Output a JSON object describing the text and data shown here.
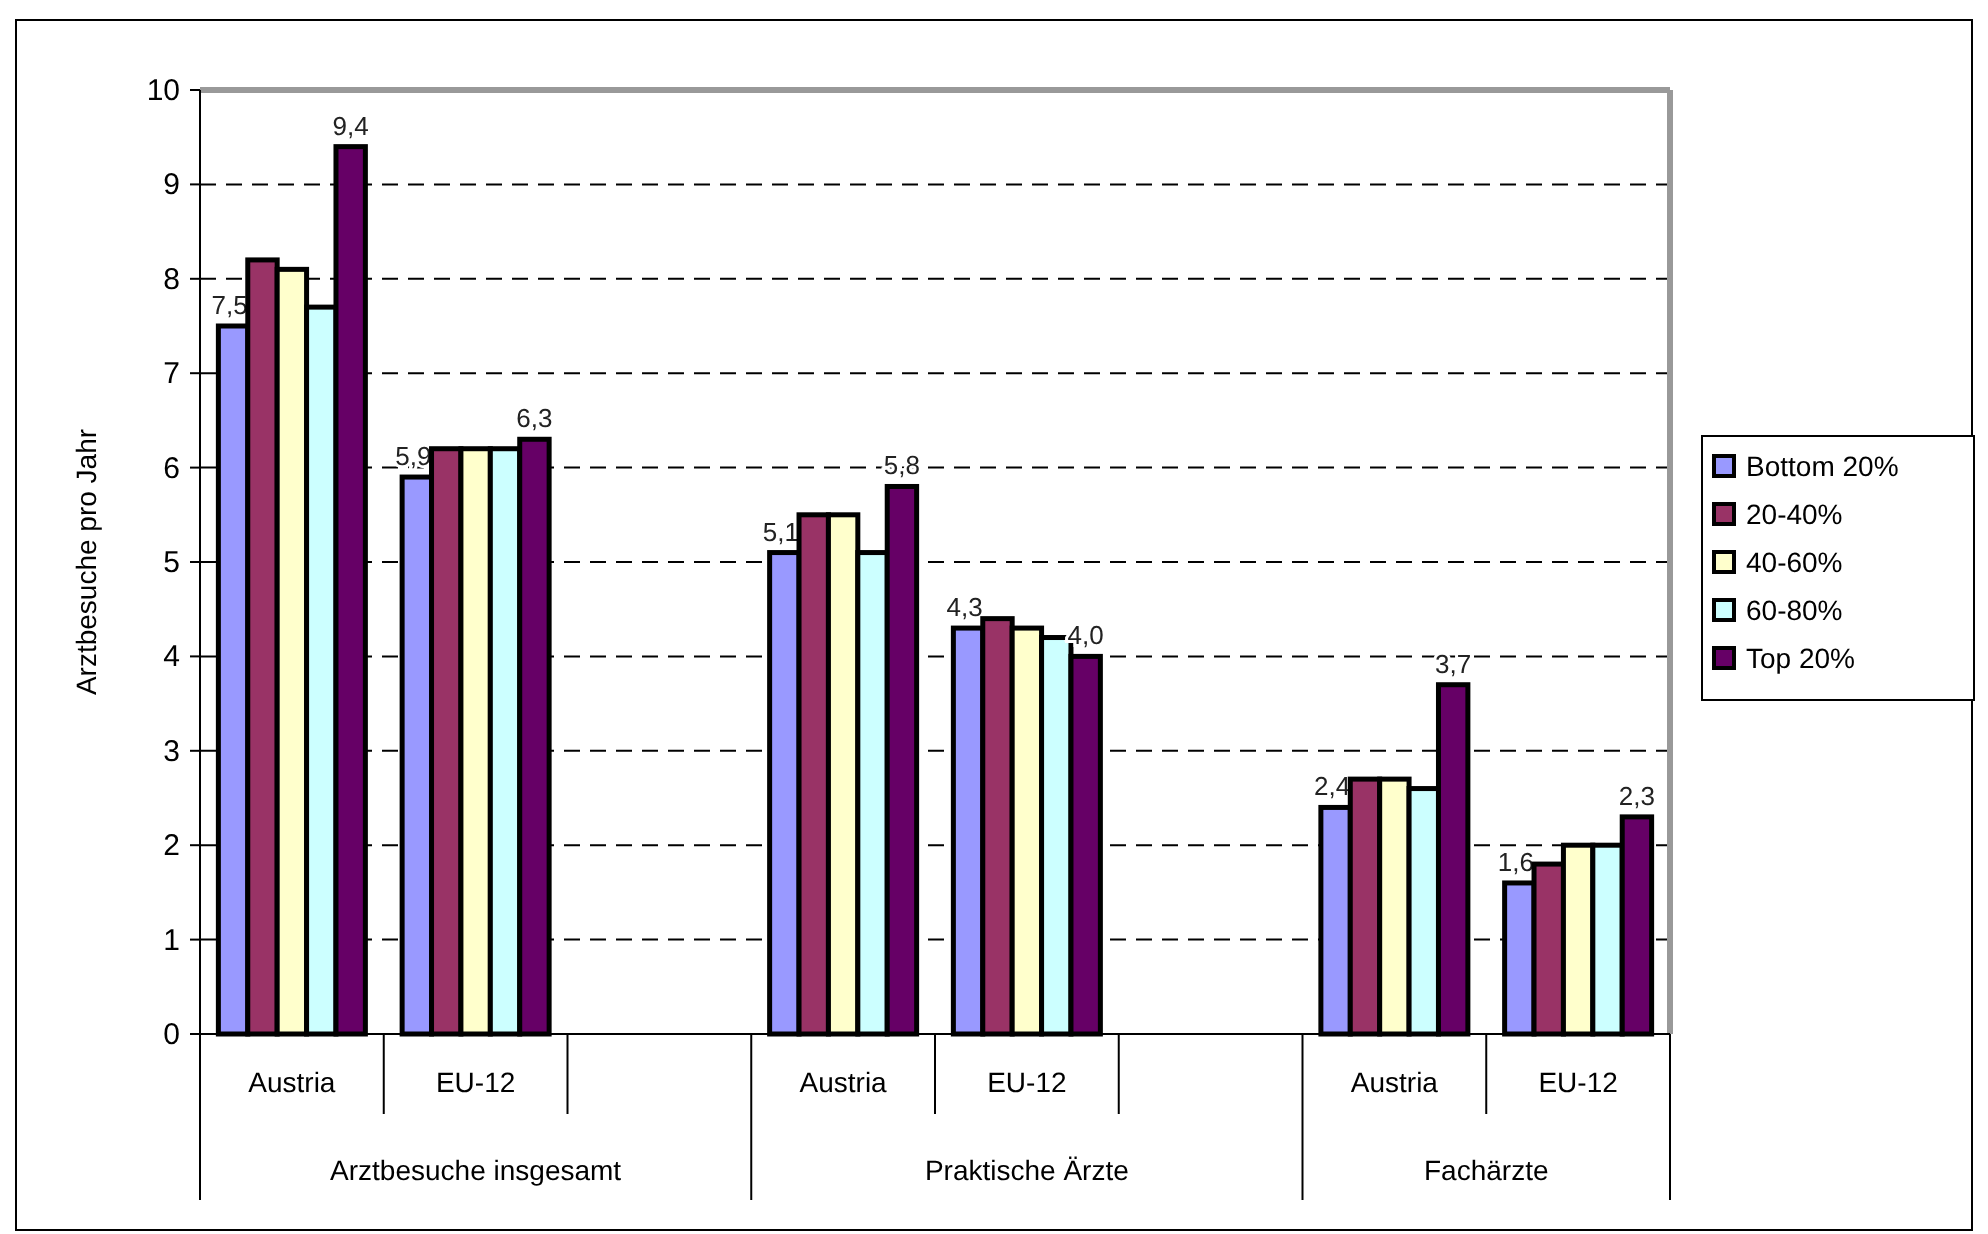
{
  "chart_data": {
    "type": "bar",
    "ylabel": "Arztbesuche pro Jahr",
    "categories": [
      "Austria",
      "EU-12",
      null,
      "Austria",
      "EU-12",
      null,
      "Austria",
      "EU-12"
    ],
    "series": [
      {
        "name": "Bottom 20%",
        "color": "#9999ff",
        "values": [
          7.5,
          5.9,
          null,
          5.1,
          4.3,
          null,
          2.4,
          1.6
        ],
        "value_labels": [
          "7,5",
          "5,9",
          null,
          "5,1",
          "4,3",
          null,
          "2,4",
          "1,6"
        ]
      },
      {
        "name": "20-40%",
        "color": "#993366",
        "values": [
          8.2,
          6.2,
          null,
          5.5,
          4.4,
          null,
          2.7,
          1.8
        ]
      },
      {
        "name": "40-60%",
        "color": "#ffffcc",
        "values": [
          8.1,
          6.2,
          null,
          5.5,
          4.3,
          null,
          2.7,
          2.0
        ]
      },
      {
        "name": "60-80%",
        "color": "#ccffff",
        "values": [
          7.7,
          6.2,
          null,
          5.1,
          4.2,
          null,
          2.6,
          2.0
        ]
      },
      {
        "name": "Top 20%",
        "color": "#660066",
        "values": [
          9.4,
          6.3,
          null,
          5.8,
          4.0,
          null,
          3.7,
          2.3
        ],
        "value_labels": [
          "9,4",
          "6,3",
          null,
          "5,8",
          "4,0",
          null,
          "3,7",
          "2,3"
        ]
      }
    ],
    "annotations": [
      "Arztbesuche insgesamt",
      "Praktische Ärzte",
      "Fachärzte"
    ],
    "ylim": [
      0,
      10
    ],
    "yticks": [
      0,
      1,
      2,
      3,
      4,
      5,
      6,
      7,
      8,
      9,
      10
    ],
    "grid": "y",
    "legend": "right"
  }
}
